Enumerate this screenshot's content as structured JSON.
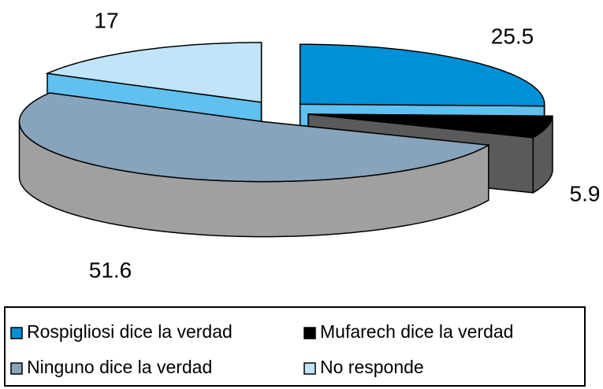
{
  "chart_data": {
    "type": "pie",
    "categories": [
      "Rospigliosi dice la verdad",
      "Mufarech dice la verdad",
      "Ninguno dice la verdad",
      "No responde"
    ],
    "values": [
      25.5,
      5.9,
      51.6,
      17
    ],
    "colors": [
      "#0090d8",
      "#000000",
      "#88a4bc",
      "#c0e4f8"
    ],
    "side_colors": [
      "#60c0f0",
      "#5a5a5a",
      "#a0a0a0",
      "#60c0f0"
    ],
    "legend": "bottom"
  }
}
